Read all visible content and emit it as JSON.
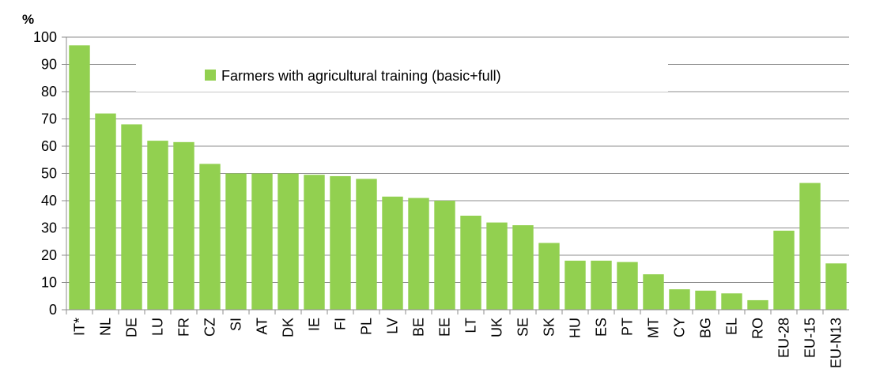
{
  "chart_data": {
    "type": "bar",
    "y_label": "%",
    "categories": [
      "IT*",
      "NL",
      "DE",
      "LU",
      "FR",
      "CZ",
      "SI",
      "AT",
      "DK",
      "IE",
      "FI",
      "PL",
      "LV",
      "BE",
      "EE",
      "LT",
      "UK",
      "SE",
      "SK",
      "HU",
      "ES",
      "PT",
      "MT",
      "CY",
      "BG",
      "EL",
      "RO",
      "EU-28",
      "EU-15",
      "EU-N13"
    ],
    "series": [
      {
        "name": "Farmers with agricultural training (basic+full)",
        "color": "#92d050",
        "values": [
          97,
          72,
          68,
          62,
          61.5,
          53.5,
          50,
          50,
          50,
          49.5,
          49,
          48,
          41.5,
          41,
          40,
          34.5,
          32,
          31,
          24.5,
          18,
          18,
          17.5,
          13,
          7.5,
          7,
          6,
          3.5,
          29,
          46.5,
          17
        ]
      }
    ],
    "ylim": [
      0,
      100
    ],
    "yticks": [
      0,
      10,
      20,
      30,
      40,
      50,
      60,
      70,
      80,
      90,
      100
    ],
    "grid": true,
    "legend": "top"
  }
}
